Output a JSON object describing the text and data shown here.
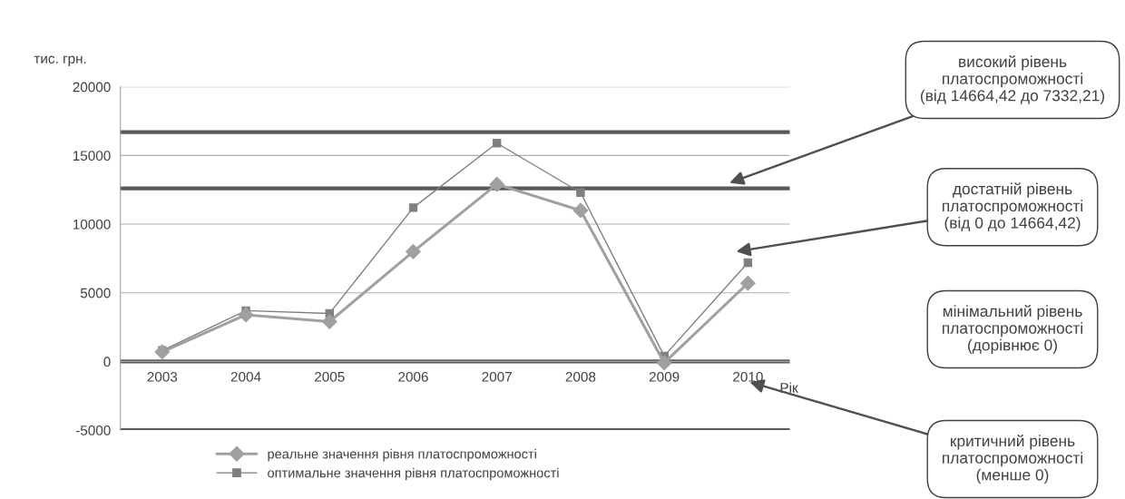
{
  "chart_data": {
    "type": "line",
    "ylabel": "тис. грн.",
    "xlabel": "Рік",
    "categories": [
      "2003",
      "2004",
      "2005",
      "2006",
      "2007",
      "2008",
      "2009",
      "2010"
    ],
    "series": [
      {
        "name": "реальне значення рівня платоспроможності",
        "color": "#a0a0a0",
        "marker": "diamond",
        "values": [
          700,
          3400,
          2900,
          8000,
          12900,
          11000,
          -100,
          5700
        ]
      },
      {
        "name": "оптимальне значення рівня платоспроможності",
        "color": "#7f7f7f",
        "marker": "square",
        "values": [
          800,
          3700,
          3500,
          11200,
          15900,
          12300,
          400,
          7200
        ]
      }
    ],
    "ylim": [
      -5000,
      20000
    ],
    "yticks": [
      -5000,
      0,
      5000,
      10000,
      15000,
      20000
    ],
    "grid": "y",
    "legend": "bottom",
    "line_style": "solid",
    "ref_lines": [
      {
        "axis": "y",
        "value": 16700,
        "color": "#595959"
      },
      {
        "axis": "y",
        "value": 12600,
        "color": "#595959"
      },
      {
        "axis": "y",
        "value": 0,
        "color": "#595959"
      },
      {
        "axis": "y",
        "value": -5000,
        "color": "#595959"
      }
    ],
    "annotations": [
      "високий рівень\nплатоспроможності\n(від 14664,42 до 7332,21)",
      "достатній рівень\nплатоспроможності\n(від 0 до 14664,42)",
      "мінімальний рівень\nплатоспроможності\n(дорівнює 0)",
      "критичний рівень\nплатоспроможності\n(менше 0)"
    ]
  }
}
